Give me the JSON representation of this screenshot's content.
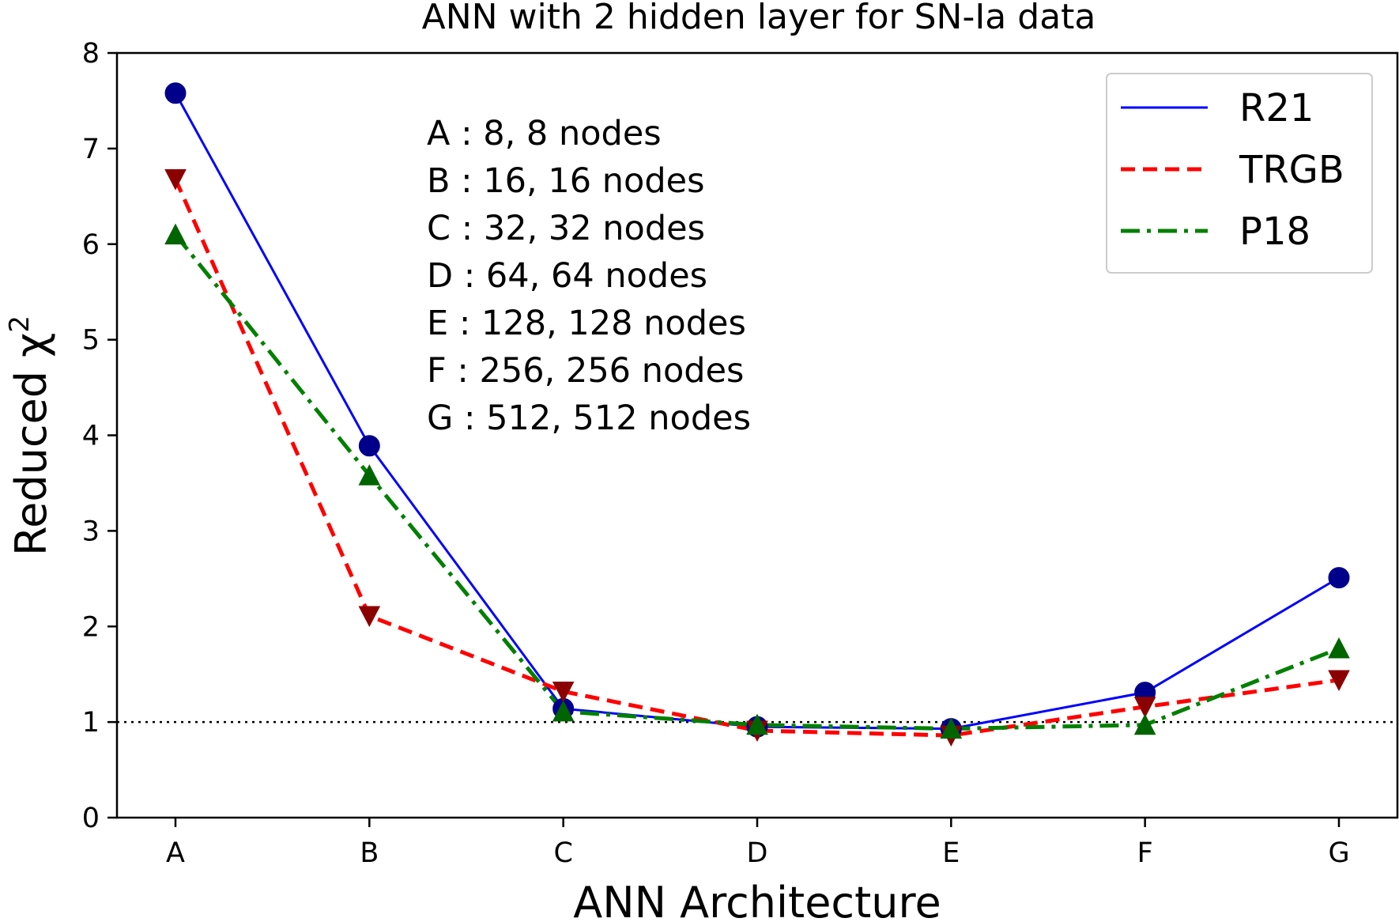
{
  "chart_data": {
    "type": "line",
    "title": "ANN with 2 hidden layer for SN-Ia data",
    "xlabel": "ANN Architecture",
    "ylabel": "Reduced χ",
    "ylabel_sup": "2",
    "categories": [
      "A",
      "B",
      "C",
      "D",
      "E",
      "F",
      "G"
    ],
    "ylim": [
      0,
      8
    ],
    "yticks": [
      0,
      1,
      2,
      3,
      4,
      5,
      6,
      7,
      8
    ],
    "grid": false,
    "legend_position": "top-right",
    "reference_line": {
      "y": 1,
      "style": "dotted",
      "color": "#000000"
    },
    "series": [
      {
        "name": "R21",
        "values": [
          7.58,
          3.89,
          1.14,
          0.95,
          0.93,
          1.31,
          2.51
        ],
        "color": "#0000ff",
        "marker_color": "#00008b",
        "marker": "circle",
        "line_style": "solid"
      },
      {
        "name": "TRGB",
        "values": [
          6.68,
          2.11,
          1.32,
          0.91,
          0.86,
          1.16,
          1.44
        ],
        "color": "#ff0000",
        "marker_color": "#8b0000",
        "marker": "triangle-down",
        "line_style": "dashed"
      },
      {
        "name": "P18",
        "values": [
          6.1,
          3.58,
          1.11,
          0.97,
          0.93,
          0.97,
          1.77
        ],
        "color": "#008000",
        "marker_color": "#006400",
        "marker": "triangle-up",
        "line_style": "dashdot"
      }
    ],
    "annotations": [
      "A : 8, 8 nodes",
      "B : 16, 16 nodes",
      "C : 32, 32 nodes",
      "D : 64, 64 nodes",
      "E : 128, 128 nodes",
      "F : 256, 256 nodes",
      "G : 512, 512 nodes"
    ]
  }
}
